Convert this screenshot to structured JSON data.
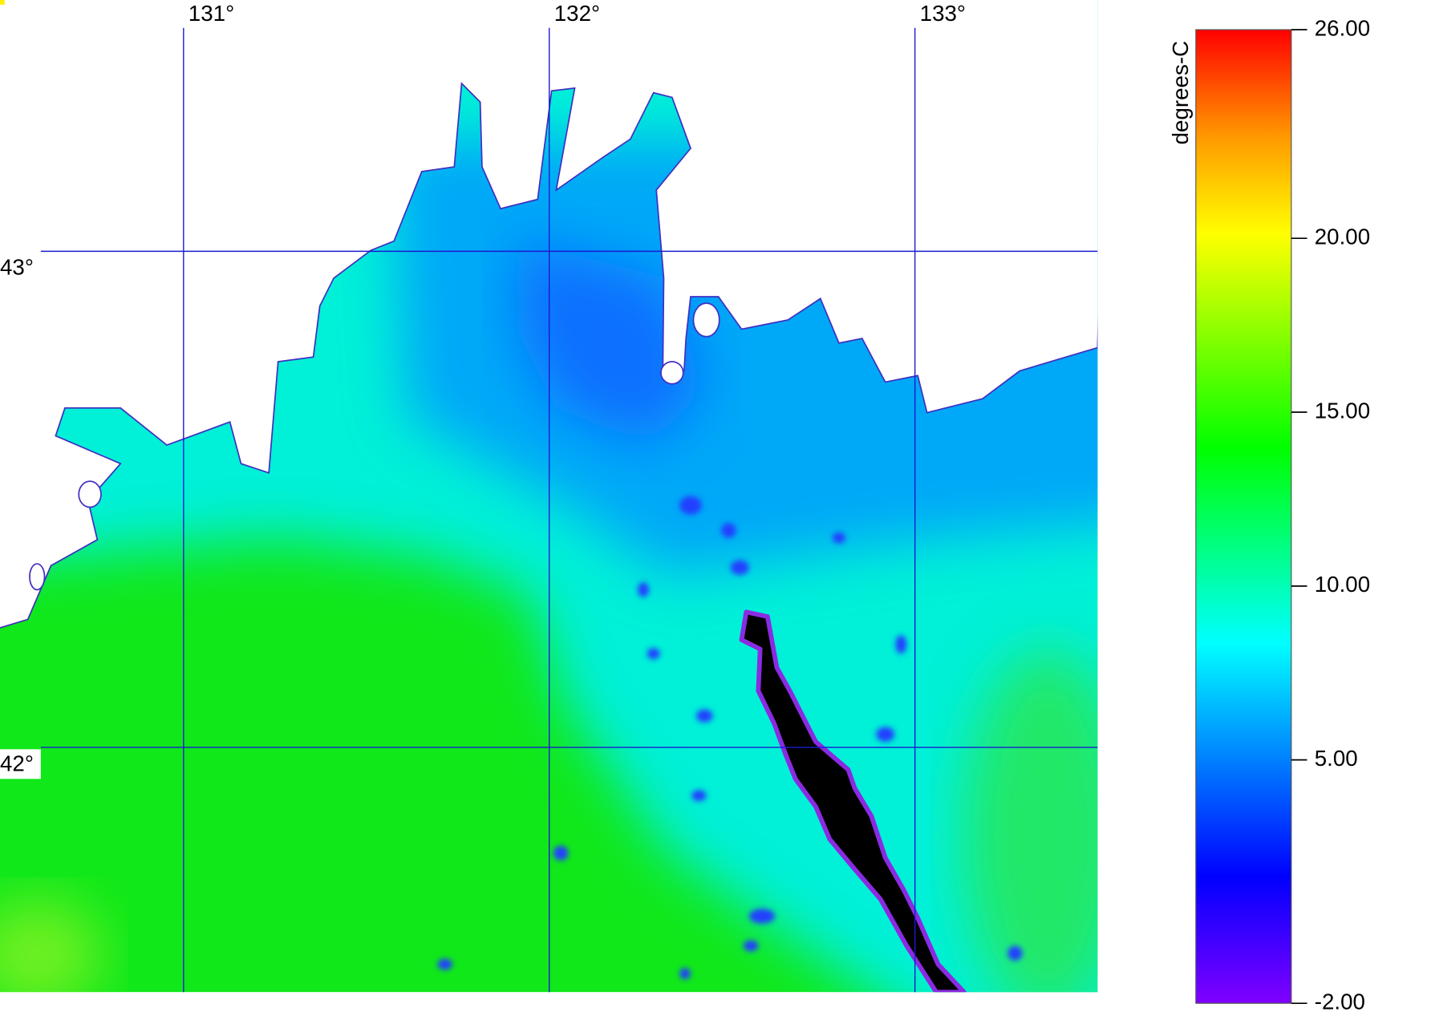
{
  "map": {
    "lon_labels": [
      {
        "value": 131,
        "label": "131°"
      },
      {
        "value": 132,
        "label": "132°"
      },
      {
        "value": 133,
        "label": "133°"
      }
    ],
    "lat_labels": [
      {
        "value": 43,
        "label": "43°"
      },
      {
        "value": 42,
        "label": "42°"
      }
    ]
  },
  "colorbar": {
    "label": "degrees-C",
    "range": [
      -2,
      26
    ],
    "ticks": [
      {
        "value": 26,
        "label": "26.00"
      },
      {
        "value": 20,
        "label": "20.00"
      },
      {
        "value": 15,
        "label": "15.00"
      },
      {
        "value": 10,
        "label": "10.00"
      },
      {
        "value": 5,
        "label": "5.00"
      },
      {
        "value": -2,
        "label": "-2.00"
      }
    ]
  }
}
